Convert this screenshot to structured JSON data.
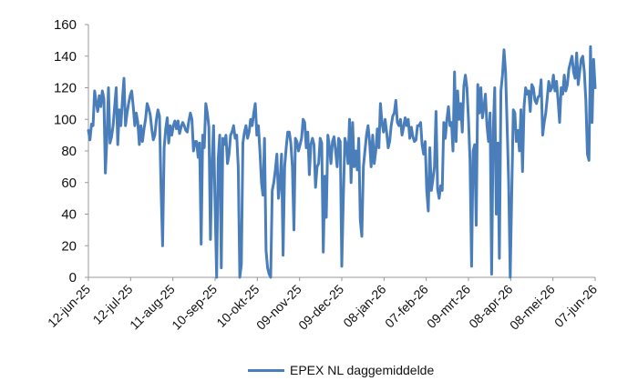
{
  "chart_data": {
    "type": "line",
    "title": "",
    "xlabel": "",
    "ylabel": "",
    "ylim": [
      0,
      160
    ],
    "y_ticks": [
      0,
      20,
      40,
      60,
      80,
      100,
      120,
      140,
      160
    ],
    "x_ticks": [
      "12-jun-25",
      "12-jul-25",
      "11-aug-25",
      "10-sep-25",
      "10-okt-25",
      "09-nov-25",
      "09-dec-25",
      "08-jan-26",
      "07-feb-26",
      "09-mrt-26",
      "08-apr-26",
      "08-mei-26",
      "07-jun-26"
    ],
    "grid": false,
    "legend_position": "bottom",
    "series": [
      {
        "name": "EPEX NL daggemiddelde",
        "color": "#4a7ebb",
        "values": [
          93,
          87,
          97,
          96,
          118,
          111,
          105,
          115,
          108,
          118,
          113,
          66,
          88,
          120,
          85,
          89,
          96,
          108,
          120,
          84,
          106,
          96,
          112,
          126,
          96,
          104,
          110,
          115,
          118,
          108,
          96,
          104,
          98,
          84,
          96,
          86,
          94,
          100,
          110,
          107,
          103,
          94,
          87,
          90,
          100,
          106,
          102,
          56,
          20,
          82,
          94,
          101,
          85,
          96,
          90,
          96,
          99,
          94,
          99,
          91,
          95,
          98,
          96,
          93,
          92,
          99,
          104,
          100,
          80,
          86,
          86,
          76,
          85,
          21,
          90,
          82,
          110,
          104,
          95,
          24,
          72,
          96,
          45,
          0,
          75,
          90,
          6,
          88,
          84,
          90,
          72,
          78,
          90,
          92,
          96,
          88,
          90,
          70,
          0,
          8,
          85,
          92,
          96,
          88,
          92,
          100,
          96,
          104,
          110,
          90,
          96,
          80,
          60,
          52,
          88,
          17,
          6,
          2,
          0,
          55,
          60,
          68,
          78,
          50,
          60,
          78,
          14,
          70,
          82,
          92,
          92,
          85,
          70,
          30,
          88,
          86,
          80,
          84,
          88,
          100,
          98,
          82,
          92,
          65,
          84,
          88,
          84,
          57,
          70,
          72,
          88,
          85,
          16,
          64,
          38,
          90,
          83,
          72,
          86,
          89,
          80,
          70,
          88,
          86,
          7,
          50,
          88,
          84,
          72,
          100,
          60,
          98,
          70,
          80,
          68,
          88,
          36,
          26,
          70,
          80,
          90,
          96,
          86,
          70,
          90,
          72,
          80,
          94,
          82,
          110,
          98,
          92,
          100,
          92,
          82,
          86,
          96,
          102,
          104,
          112,
          98,
          96,
          100,
          90,
          95,
          101,
          96,
          100,
          88,
          95,
          89,
          86,
          87,
          96,
          96,
          98,
          84,
          78,
          86,
          55,
          42,
          82,
          55,
          62,
          70,
          105,
          56,
          50,
          58,
          55,
          98,
          88,
          100,
          108,
          96,
          98,
          80,
          130,
          86,
          118,
          100,
          110,
          92,
          121,
          128,
          120,
          100,
          74,
          7,
          80,
          84,
          33,
          122,
          104,
          120,
          101,
          108,
          116,
          96,
          86,
          104,
          2,
          92,
          120,
          40,
          85,
          12,
          118,
          128,
          144,
          130,
          96,
          60,
          0,
          54,
          106,
          104,
          86,
          93,
          80,
          106,
          67,
          108,
          120,
          116,
          118,
          105,
          122,
          120,
          112,
          110,
          114,
          115,
          125,
          90,
          98,
          104,
          114,
          124,
          118,
          120,
          128,
          118,
          124,
          112,
          98,
          120,
          116,
          128,
          118,
          122,
          132,
          136,
          140,
          130,
          126,
          142,
          122,
          130,
          138,
          140,
          130,
          112,
          78,
          74,
          146,
          98,
          138,
          120
        ]
      }
    ]
  }
}
